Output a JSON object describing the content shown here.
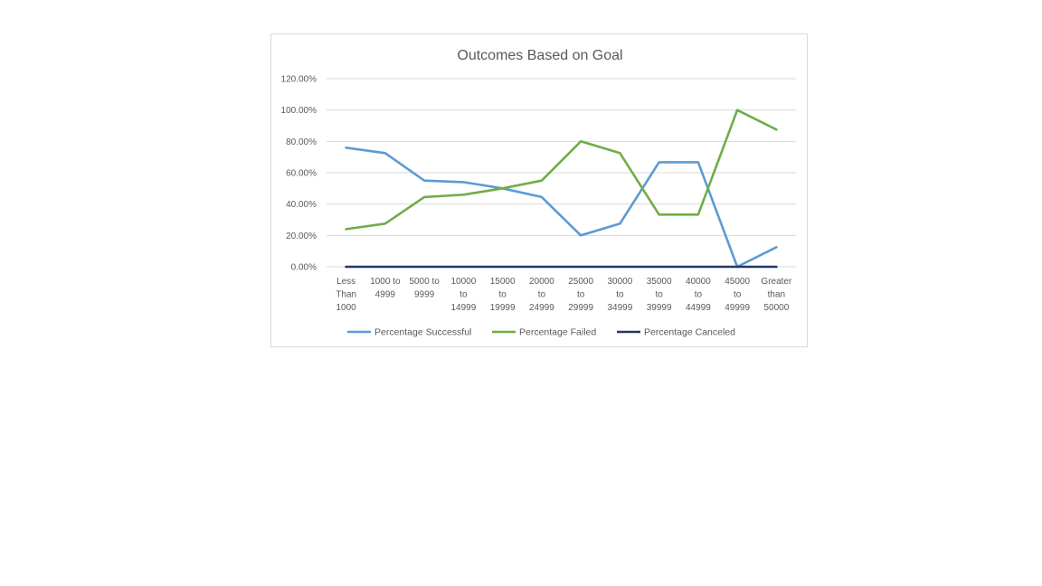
{
  "chart_data": {
    "type": "line",
    "title": "Outcomes Based on Goal",
    "xlabel": "",
    "ylabel": "",
    "ylim": [
      0,
      1.2
    ],
    "y_ticks": [
      "0.00%",
      "20.00%",
      "40.00%",
      "60.00%",
      "80.00%",
      "100.00%",
      "120.00%"
    ],
    "categories": [
      [
        "Less",
        "Than",
        "1000"
      ],
      [
        "1000 to",
        "4999"
      ],
      [
        "5000 to",
        "9999"
      ],
      [
        "10000",
        "to",
        "14999"
      ],
      [
        "15000",
        "to",
        "19999"
      ],
      [
        "20000",
        "to",
        "24999"
      ],
      [
        "25000",
        "to",
        "29999"
      ],
      [
        "30000",
        "to",
        "34999"
      ],
      [
        "35000",
        "to",
        "39999"
      ],
      [
        "40000",
        "to",
        "44999"
      ],
      [
        "45000",
        "to",
        "49999"
      ],
      [
        "Greater",
        "than",
        "50000"
      ]
    ],
    "series": [
      {
        "name": "Percentage Successful",
        "color": "#5b9bd5",
        "values": [
          0.76,
          0.725,
          0.55,
          0.54,
          0.5,
          0.445,
          0.2,
          0.275,
          0.667,
          0.667,
          0.0,
          0.125
        ]
      },
      {
        "name": "Percentage Failed",
        "color": "#70ad47",
        "values": [
          0.24,
          0.275,
          0.445,
          0.46,
          0.5,
          0.55,
          0.8,
          0.725,
          0.333,
          0.333,
          1.0,
          0.875
        ]
      },
      {
        "name": "Percentage Canceled",
        "color": "#203864",
        "values": [
          0,
          0,
          0,
          0,
          0,
          0,
          0,
          0,
          0,
          0,
          0,
          0
        ]
      }
    ],
    "grid": true,
    "legend": "bottom"
  }
}
